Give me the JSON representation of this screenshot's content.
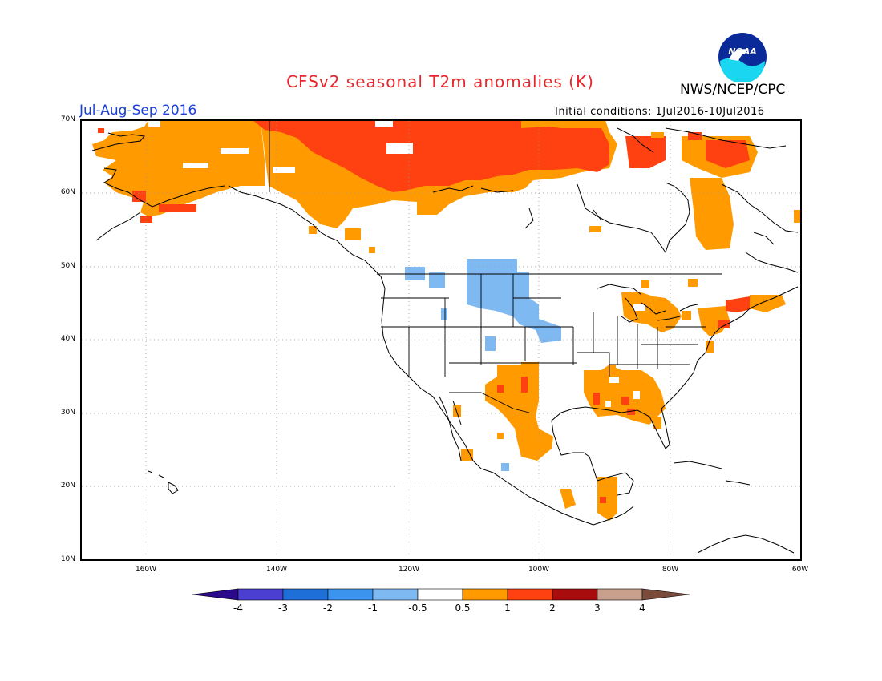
{
  "header": {
    "title": "CFSv2 seasonal T2m anomalies (K)",
    "season": "Jul-Aug-Sep 2016",
    "agency": "NWS/NCEP/CPC",
    "initial_conditions": "Initial conditions: 1Jul2016-10Jul2016",
    "logo_text": "NOAA"
  },
  "map": {
    "lat_labels": [
      "70N",
      "60N",
      "50N",
      "40N",
      "30N",
      "20N",
      "10N"
    ],
    "lon_labels": [
      "160W",
      "140W",
      "120W",
      "100W",
      "80W",
      "60W"
    ]
  },
  "legend": {
    "tick_labels": [
      "-4",
      "-3",
      "-2",
      "-1",
      "-0.5",
      "0.5",
      "1",
      "2",
      "3",
      "4"
    ],
    "colors": {
      "below_-4": "#2a0a8a",
      "-4_-3": "#4a3fd0",
      "-3_-2": "#1f6fd9",
      "-2_-1": "#3b95ee",
      "-1_-0.5": "#7fb9f2",
      "-0.5_0.5": "#ffffff",
      "0.5_1": "#ff9a00",
      "1_2": "#ff4010",
      "2_3": "#a80c0c",
      "3_4": "#c9a08c",
      "above_4": "#7a4a3a"
    }
  }
}
